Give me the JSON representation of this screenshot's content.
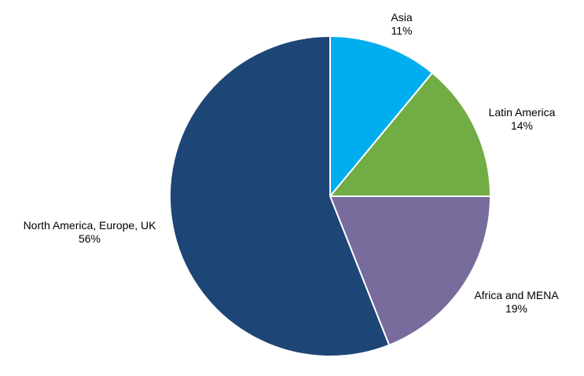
{
  "chart_data": {
    "type": "pie",
    "title": "",
    "start_angle_deg": 0,
    "direction": "clockwise",
    "slices": [
      {
        "name": "Asia",
        "value": 11,
        "value_label": "11%",
        "color": "#00AEEF"
      },
      {
        "name": "Latin America",
        "value": 14,
        "value_label": "14%",
        "color": "#72AC44"
      },
      {
        "name": "Africa and MENA",
        "value": 19,
        "value_label": "19%",
        "color": "#786C9D"
      },
      {
        "name": "North America, Europe, UK",
        "value": 56,
        "value_label": "56%",
        "color": "#1D4576"
      }
    ],
    "legend": "none",
    "slice_border_color": "#ffffff"
  }
}
